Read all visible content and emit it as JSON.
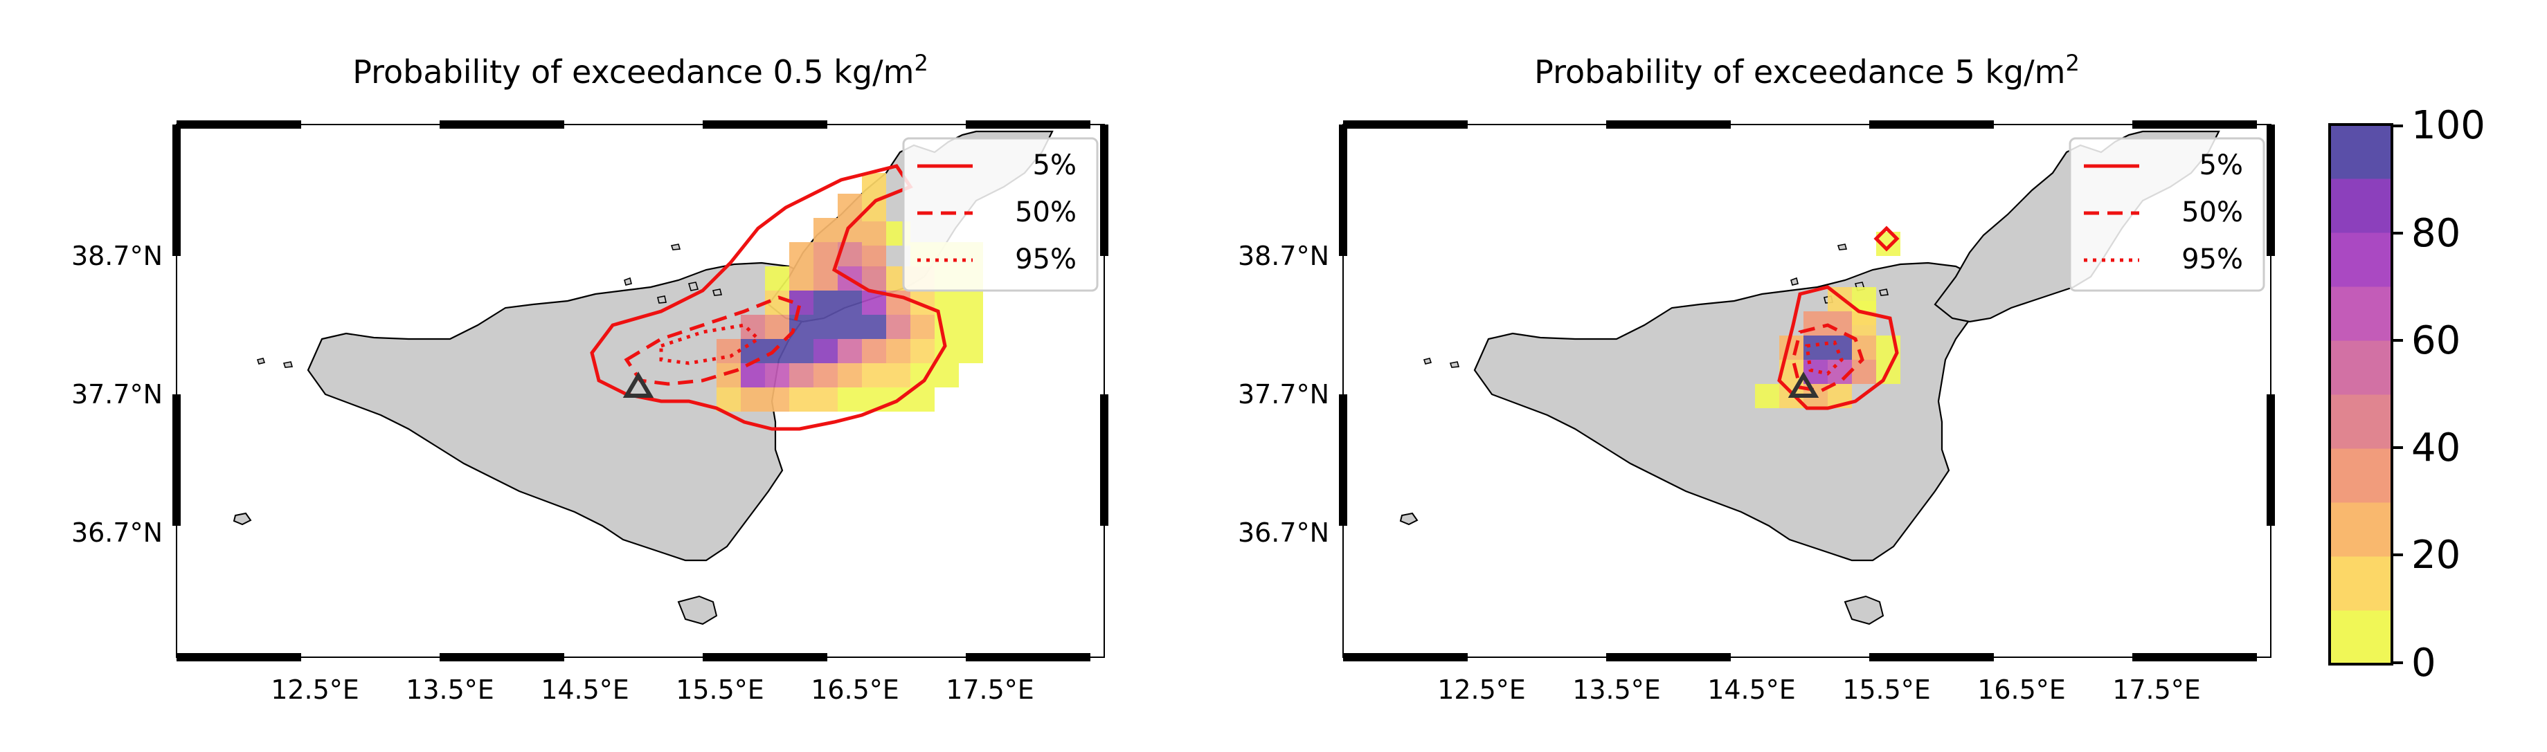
{
  "panels": [
    {
      "id": "left",
      "title": "Probability of exceedance 0.5 kg/m",
      "title_sup": "2",
      "legend": [
        {
          "label": "5%",
          "style": "solid"
        },
        {
          "label": "50%",
          "style": "dashed"
        },
        {
          "label": "95%",
          "style": "dotted"
        }
      ]
    },
    {
      "id": "right",
      "title": "Probability of exceedance 5 kg/m",
      "title_sup": "2",
      "legend": [
        {
          "label": "5%",
          "style": "solid"
        },
        {
          "label": "50%",
          "style": "dashed"
        },
        {
          "label": "95%",
          "style": "dotted"
        }
      ]
    }
  ],
  "axes": {
    "lon_ticks": [
      "12.5°E",
      "13.5°E",
      "14.5°E",
      "15.5°E",
      "16.5°E",
      "17.5°E"
    ],
    "lat_ticks": [
      "38.7°N",
      "37.7°N",
      "36.7°N"
    ]
  },
  "colorbar": {
    "ticks": [
      "100",
      "80",
      "60",
      "40",
      "20",
      "0"
    ],
    "colors": [
      "#f0f757",
      "#fcd767",
      "#f9b86e",
      "#f19c7c",
      "#e08590",
      "#d271a4",
      "#c35cb8",
      "#aa49c2",
      "#8c40bc",
      "#5a4fa8"
    ]
  },
  "colors": {
    "land": "#cccccc",
    "coast": "#000000",
    "contour": "#ee1111",
    "vent": "#333333"
  }
}
